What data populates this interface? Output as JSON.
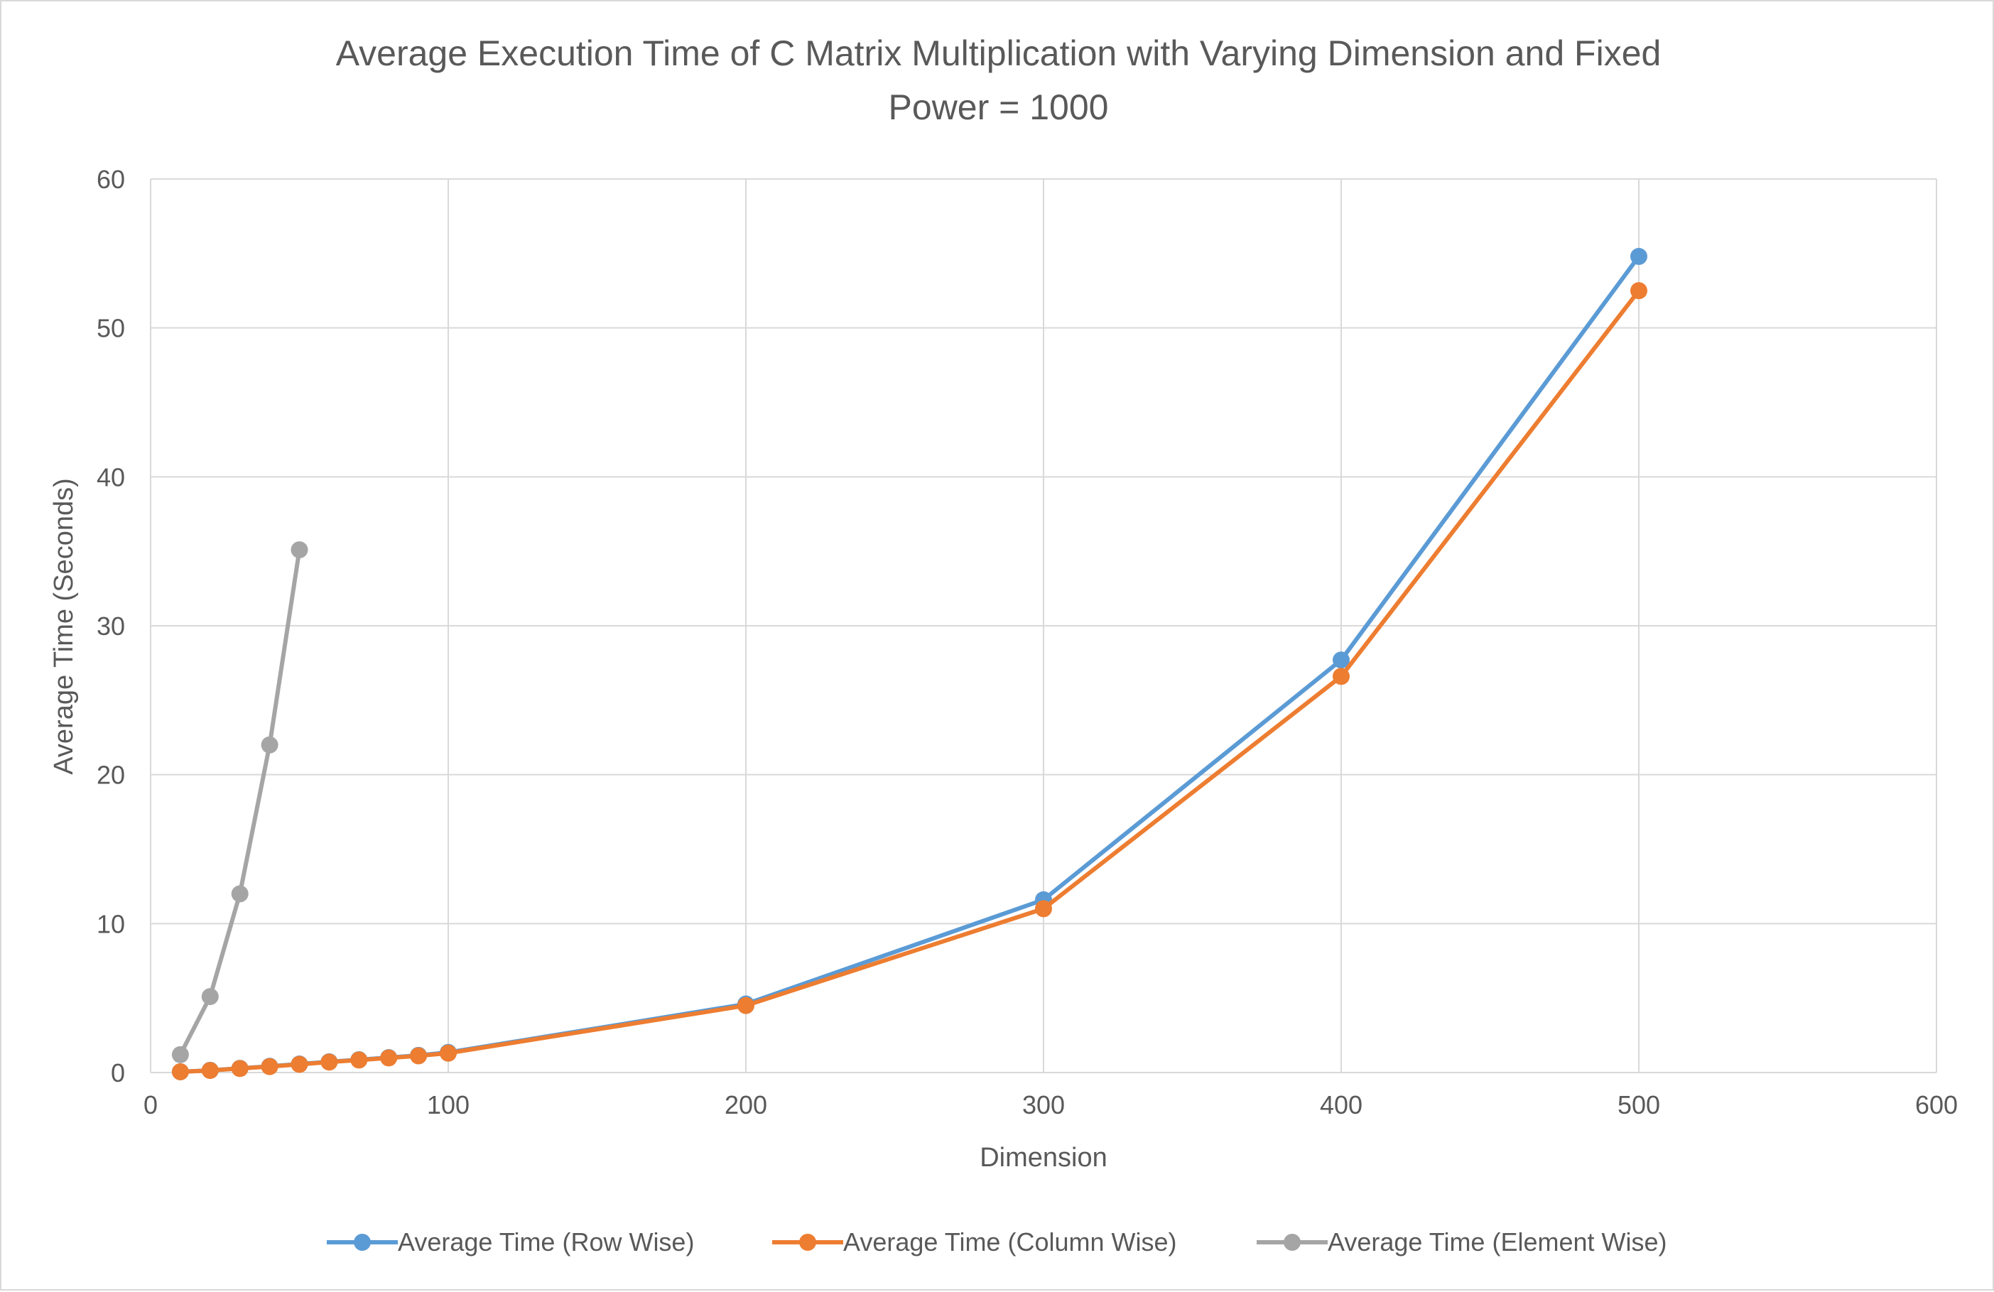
{
  "chart_data": {
    "type": "line",
    "title_lines": [
      "Average Execution Time of C Matrix Multiplication with Varying Dimension and Fixed",
      "Power = 1000"
    ],
    "xlabel": "Dimension",
    "ylabel": "Average Time (Seconds)",
    "xlim": [
      0,
      600
    ],
    "ylim": [
      0,
      60
    ],
    "x_ticks": [
      0,
      100,
      200,
      300,
      400,
      500,
      600
    ],
    "y_ticks": [
      0,
      10,
      20,
      30,
      40,
      50,
      60
    ],
    "grid": true,
    "legend_position": "bottom",
    "series": [
      {
        "name": "Average Time (Row Wise)",
        "color": "#5b9bd5",
        "x": [
          10,
          20,
          30,
          40,
          50,
          60,
          70,
          80,
          90,
          100,
          200,
          300,
          400,
          500
        ],
        "y": [
          0.05,
          0.15,
          0.28,
          0.42,
          0.57,
          0.72,
          0.86,
          1.0,
          1.15,
          1.35,
          4.6,
          11.6,
          27.7,
          54.8
        ]
      },
      {
        "name": "Average Time (Column Wise)",
        "color": "#ed7d31",
        "x": [
          10,
          20,
          30,
          40,
          50,
          60,
          70,
          80,
          90,
          100,
          200,
          300,
          400,
          500
        ],
        "y": [
          0.05,
          0.14,
          0.27,
          0.4,
          0.55,
          0.7,
          0.84,
          0.98,
          1.12,
          1.3,
          4.5,
          11.0,
          26.6,
          52.5
        ]
      },
      {
        "name": "Average Time (Element Wise)",
        "color": "#a5a5a5",
        "x": [
          10,
          20,
          30,
          40,
          50
        ],
        "y": [
          1.2,
          5.1,
          12.0,
          22.0,
          35.1
        ]
      }
    ]
  }
}
